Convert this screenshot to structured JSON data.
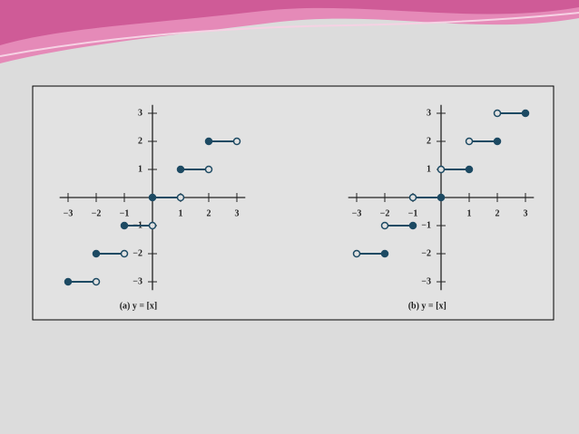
{
  "chart_data": [
    {
      "type": "step",
      "title": "(a) y = [x]",
      "color": "#1d4a63",
      "closed": "start",
      "starts": [
        -3,
        -2,
        -1,
        0,
        1,
        2
      ],
      "ends": [
        -2,
        -1,
        0,
        1,
        2,
        3
      ],
      "values": [
        -3,
        -2,
        -1,
        0,
        1,
        2
      ],
      "xlim": [
        -3.3,
        3.3
      ],
      "ylim": [
        -3.3,
        3.3
      ],
      "xticks": [
        {
          "value": -3,
          "label": "−3"
        },
        {
          "value": -2,
          "label": "−2"
        },
        {
          "value": -1,
          "label": "−1"
        },
        1,
        2,
        3
      ],
      "yticks": [
        {
          "value": -3,
          "label": "−3"
        },
        {
          "value": -2,
          "label": "−2"
        },
        {
          "value": -1,
          "label": "−1"
        },
        1,
        2,
        3
      ]
    },
    {
      "type": "step",
      "title": "(b) y = [x]",
      "color": "#1d4a63",
      "closed": "end",
      "starts": [
        -3,
        -2,
        -1,
        0,
        1,
        2
      ],
      "ends": [
        -2,
        -1,
        0,
        1,
        2,
        3
      ],
      "values": [
        -2,
        -1,
        0,
        1,
        2,
        3
      ],
      "xlim": [
        -3.3,
        3.3
      ],
      "ylim": [
        -3.3,
        3.3
      ],
      "xticks": [
        {
          "value": -3,
          "label": "−3"
        },
        {
          "value": -2,
          "label": "−2"
        },
        {
          "value": -1,
          "label": "−1"
        },
        1,
        2,
        3
      ],
      "yticks": [
        {
          "value": -3,
          "label": "−3"
        },
        {
          "value": -2,
          "label": "−2"
        },
        {
          "value": -1,
          "label": "−1"
        },
        1,
        2,
        3
      ]
    }
  ]
}
